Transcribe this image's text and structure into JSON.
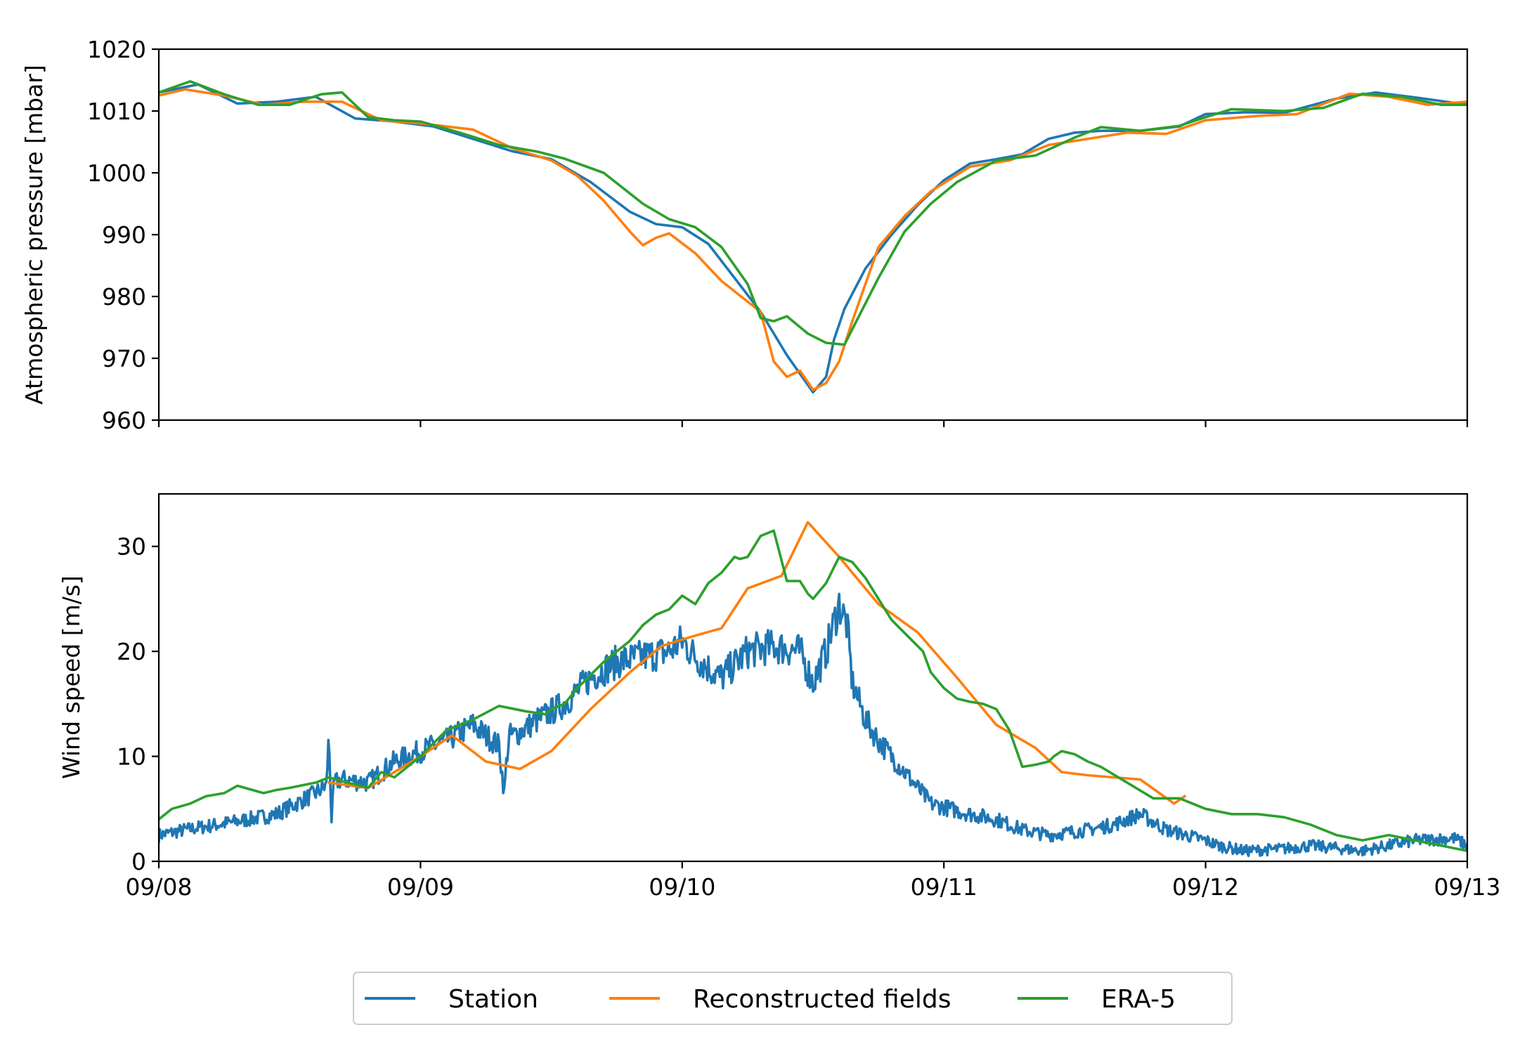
{
  "chart_data": [
    {
      "type": "line",
      "ylabel": "Atmospheric pressure [mbar]",
      "xlim": [
        "09/08",
        "09/13"
      ],
      "ylim": [
        960,
        1020
      ],
      "yticks": [
        960,
        970,
        980,
        990,
        1000,
        1010,
        1020
      ],
      "xticks": [
        "09/08",
        "09/09",
        "09/10",
        "09/11",
        "09/12",
        "09/13"
      ],
      "xtick_labels_visible": false,
      "grid": false,
      "series": [
        {
          "name": "Station",
          "color": "#1f77b4",
          "x_days": [
            0,
            0.15,
            0.3,
            0.45,
            0.6,
            0.75,
            0.9,
            1.05,
            1.2,
            1.35,
            1.5,
            1.65,
            1.8,
            1.9,
            2.0,
            2.1,
            2.2,
            2.3,
            2.4,
            2.45,
            2.5,
            2.55,
            2.58,
            2.62,
            2.7,
            2.8,
            2.9,
            3.0,
            3.1,
            3.2,
            3.3,
            3.4,
            3.5,
            3.6,
            3.75,
            3.9,
            4.0,
            4.15,
            4.3,
            4.5,
            4.65,
            4.8,
            5.0
          ],
          "y": [
            1013,
            1014.3,
            1011.2,
            1011.5,
            1012.3,
            1008.8,
            1008.3,
            1007.5,
            1005.5,
            1003.5,
            1002.2,
            998.5,
            993.7,
            991.7,
            991.2,
            988.5,
            983,
            977.5,
            970.5,
            967.5,
            964.5,
            967,
            973,
            978,
            984.5,
            990,
            994.8,
            998.8,
            1001.5,
            1002.2,
            1003,
            1005.5,
            1006.5,
            1006.8,
            1006.8,
            1007.5,
            1009.5,
            1009.8,
            1009.7,
            1012,
            1013,
            1012.2,
            1011
          ]
        },
        {
          "name": "Reconstructed fields",
          "color": "#ff7f0e",
          "x_days": [
            0,
            0.1,
            0.25,
            0.4,
            0.55,
            0.7,
            0.85,
            1.0,
            1.2,
            1.35,
            1.5,
            1.6,
            1.7,
            1.8,
            1.85,
            1.9,
            1.95,
            2.05,
            2.15,
            2.3,
            2.35,
            2.4,
            2.45,
            2.5,
            2.55,
            2.6,
            2.65,
            2.75,
            2.85,
            2.95,
            3.1,
            3.25,
            3.4,
            3.55,
            3.7,
            3.85,
            4.0,
            4.2,
            4.35,
            4.55,
            4.7,
            4.85,
            5.0
          ],
          "y": [
            1012.5,
            1013.5,
            1012.5,
            1011,
            1011.5,
            1011.5,
            1008.5,
            1008,
            1007,
            1004,
            1002,
            999.5,
            995.5,
            990.5,
            988.3,
            989.5,
            990.2,
            987,
            982.5,
            977.5,
            969.5,
            967,
            968,
            964.9,
            966,
            969.5,
            976,
            988,
            993,
            997,
            1001,
            1002,
            1004.5,
            1005.5,
            1006.5,
            1006.3,
            1008.5,
            1009.2,
            1009.5,
            1012.8,
            1012.3,
            1011,
            1011.5
          ]
        },
        {
          "name": "ERA-5",
          "color": "#2ca02c",
          "x_days": [
            0,
            0.12,
            0.25,
            0.38,
            0.5,
            0.62,
            0.7,
            0.8,
            0.9,
            1.0,
            1.15,
            1.3,
            1.45,
            1.55,
            1.7,
            1.85,
            1.95,
            2.05,
            2.15,
            2.25,
            2.3,
            2.35,
            2.4,
            2.48,
            2.55,
            2.62,
            2.75,
            2.85,
            2.95,
            3.05,
            3.2,
            3.35,
            3.5,
            3.6,
            3.75,
            3.9,
            4.0,
            4.1,
            4.3,
            4.45,
            4.6,
            4.75,
            4.9,
            5.0
          ],
          "y": [
            1013,
            1014.8,
            1012.7,
            1011,
            1011,
            1012.7,
            1013,
            1009,
            1008.5,
            1008.3,
            1006.5,
            1004.5,
            1003.4,
            1002.3,
            1000,
            995,
            992.5,
            991.2,
            988,
            982,
            976.5,
            976,
            976.8,
            974,
            972.5,
            972.2,
            983,
            990.5,
            995,
            998.5,
            1002,
            1002.8,
            1005.7,
            1007.4,
            1006.8,
            1007.6,
            1009,
            1010.3,
            1010,
            1010.5,
            1012.8,
            1012.3,
            1011,
            1011
          ]
        }
      ]
    },
    {
      "type": "line",
      "ylabel": "Wind speed [m/s]",
      "xlim": [
        "09/08",
        "09/13"
      ],
      "ylim": [
        0,
        35
      ],
      "yticks": [
        0,
        10,
        20,
        30
      ],
      "xticks": [
        "09/08",
        "09/09",
        "09/10",
        "09/11",
        "09/12",
        "09/13"
      ],
      "grid": false,
      "series": [
        {
          "name": "Station",
          "color": "#1f77b4",
          "noise_amplitude": 1.2,
          "x_days": [
            0,
            0.1,
            0.3,
            0.45,
            0.6,
            0.64,
            0.65,
            0.66,
            0.67,
            0.7,
            0.8,
            0.9,
            1.0,
            1.1,
            1.2,
            1.3,
            1.32,
            1.33,
            1.34,
            1.36,
            1.45,
            1.55,
            1.65,
            1.75,
            1.85,
            1.95,
            2.0,
            2.05,
            2.12,
            2.15,
            2.25,
            2.35,
            2.45,
            2.5,
            2.55,
            2.6,
            2.63,
            2.65,
            2.7,
            2.75,
            2.85,
            2.95,
            3.1,
            3.2,
            3.3,
            3.4,
            3.55,
            3.65,
            3.75,
            3.85,
            4.0,
            4.05,
            4.15,
            4.3,
            4.4,
            4.6,
            4.8,
            4.95,
            5.0
          ],
          "y": [
            2.5,
            3,
            3.8,
            4.5,
            6.5,
            7.2,
            12,
            4,
            7.5,
            7.8,
            7.5,
            9.5,
            10.5,
            11.5,
            13,
            11,
            6.5,
            10,
            12,
            12,
            13.5,
            15,
            17.5,
            19,
            19.5,
            20,
            21,
            19.5,
            18,
            17.5,
            20,
            20.5,
            20,
            17,
            20,
            24.5,
            22.5,
            17,
            13.5,
            11.5,
            8.5,
            5.5,
            4.5,
            4,
            3,
            2.5,
            3,
            3.5,
            4.5,
            3,
            2,
            1.5,
            1,
            1.2,
            1.5,
            1,
            2,
            2.2,
            1.5
          ]
        },
        {
          "name": "Reconstructed fields",
          "color": "#ff7f0e",
          "x_days": [
            0.65,
            0.8,
            1.0,
            1.12,
            1.25,
            1.38,
            1.5,
            1.65,
            1.8,
            1.92,
            2.05,
            2.15,
            2.25,
            2.38,
            2.48,
            2.6,
            2.75,
            2.9,
            3.05,
            3.2,
            3.35,
            3.45,
            3.55,
            3.65,
            3.75,
            3.88,
            3.92
          ],
          "y": [
            7.5,
            7,
            10,
            12,
            9.5,
            8.8,
            10.5,
            14.5,
            18,
            20.5,
            21.5,
            22.2,
            26,
            27.2,
            32.3,
            29,
            24.5,
            21.8,
            17.5,
            13,
            10.8,
            8.5,
            8.2,
            8,
            7.8,
            5.5,
            6.2
          ]
        },
        {
          "name": "ERA-5",
          "color": "#2ca02c",
          "x_days": [
            0,
            0.05,
            0.12,
            0.18,
            0.25,
            0.3,
            0.4,
            0.45,
            0.5,
            0.6,
            0.65,
            0.72,
            0.8,
            0.85,
            0.9,
            0.95,
            1.0,
            1.1,
            1.2,
            1.3,
            1.4,
            1.48,
            1.5,
            1.55,
            1.6,
            1.7,
            1.75,
            1.8,
            1.85,
            1.9,
            1.95,
            2.0,
            2.05,
            2.1,
            2.15,
            2.2,
            2.22,
            2.25,
            2.3,
            2.35,
            2.4,
            2.45,
            2.48,
            2.5,
            2.55,
            2.6,
            2.65,
            2.7,
            2.75,
            2.8,
            2.88,
            2.92,
            2.95,
            3.0,
            3.05,
            3.1,
            3.15,
            3.2,
            3.25,
            3.3,
            3.35,
            3.4,
            3.42,
            3.45,
            3.5,
            3.55,
            3.6,
            3.7,
            3.8,
            3.9,
            3.95,
            4.0,
            4.1,
            4.2,
            4.3,
            4.4,
            4.5,
            4.6,
            4.7,
            4.8,
            4.9,
            5.0
          ],
          "y": [
            4,
            5,
            5.5,
            6.2,
            6.5,
            7.2,
            6.5,
            6.8,
            7,
            7.5,
            8,
            7.5,
            7,
            8.5,
            8,
            9,
            10,
            12.5,
            13.5,
            14.8,
            14.3,
            14,
            14.5,
            15,
            16.5,
            19,
            20,
            21,
            22.5,
            23.5,
            24,
            25.3,
            24.5,
            26.5,
            27.5,
            29,
            28.8,
            29,
            31,
            31.5,
            26.7,
            26.7,
            25.5,
            25,
            26.5,
            29,
            28.5,
            27,
            25,
            23,
            21,
            20,
            18,
            16.5,
            15.5,
            15.2,
            15,
            14.5,
            12.5,
            9,
            9.2,
            9.5,
            10,
            10.5,
            10.2,
            9.5,
            9,
            7.5,
            6,
            6,
            5.5,
            5,
            4.5,
            4.5,
            4.2,
            3.5,
            2.5,
            2,
            2.5,
            2,
            1.5,
            1
          ]
        }
      ]
    }
  ],
  "legend": {
    "placement": "bottom-center",
    "items": [
      {
        "label": "Station",
        "color": "#1f77b4"
      },
      {
        "label": "Reconstructed fields",
        "color": "#ff7f0e"
      },
      {
        "label": "ERA-5",
        "color": "#2ca02c"
      }
    ]
  }
}
